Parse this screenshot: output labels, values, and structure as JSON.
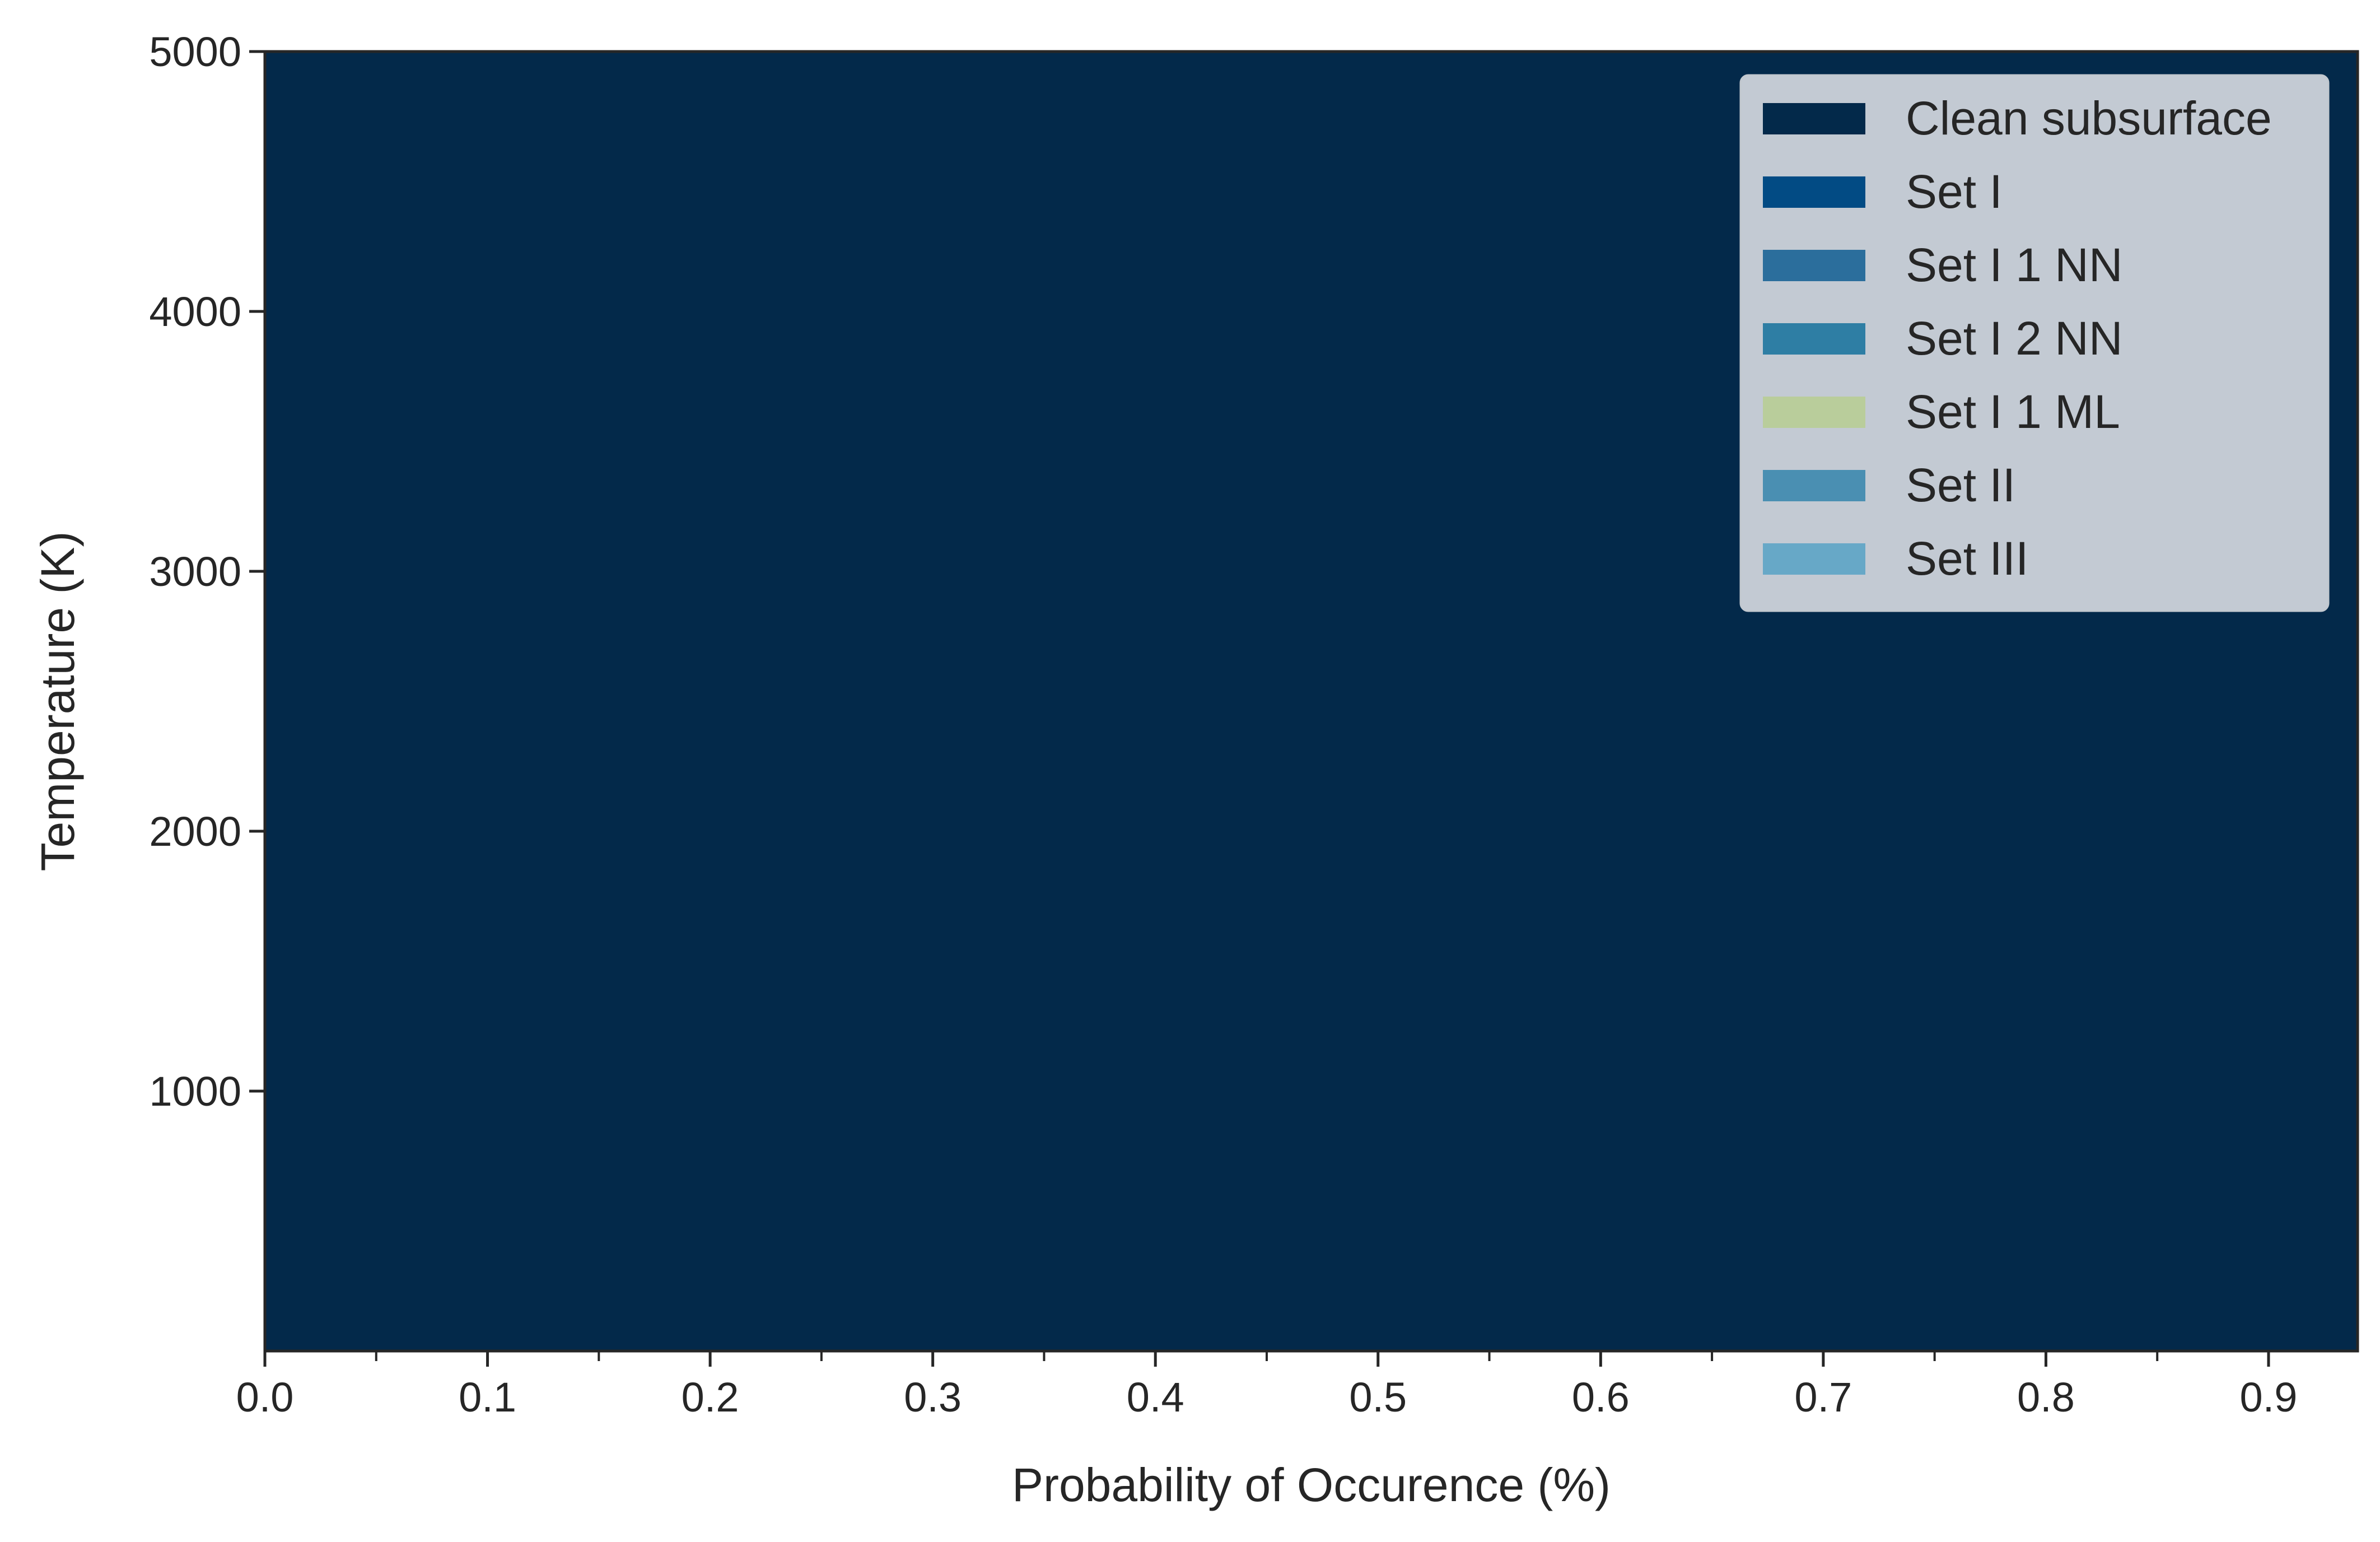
{
  "chart_data": {
    "type": "area",
    "orientation": "horizontal-stacked",
    "xlabel": "Probability of Occurence (%)",
    "ylabel": "Temperature (K)",
    "xlim": [
      0.0,
      0.94
    ],
    "ylim": [
      0,
      5000
    ],
    "x_ticks": [
      "0.0",
      "0.1",
      "0.2",
      "0.3",
      "0.4",
      "0.5",
      "0.6",
      "0.7",
      "0.8",
      "0.9"
    ],
    "x_tick_values": [
      0.0,
      0.1,
      0.2,
      0.3,
      0.4,
      0.5,
      0.6,
      0.7,
      0.8,
      0.9
    ],
    "x_minor_tick_values": [
      0.05,
      0.15,
      0.25,
      0.35,
      0.45,
      0.55,
      0.65,
      0.75,
      0.85
    ],
    "y_ticks": [
      "1000",
      "2000",
      "3000",
      "4000",
      "5000"
    ],
    "y_tick_values": [
      1000,
      2000,
      3000,
      4000,
      5000
    ],
    "grid": false,
    "legend_position": "top-right",
    "temperatures": [
      0,
      3200,
      3500,
      3800,
      4100,
      4200,
      4400,
      4700,
      4900,
      5000
    ],
    "series": [
      {
        "name": "Clean subsurface",
        "color": "#03294a",
        "values": [
          0.94,
          0.94,
          0.94,
          0.94,
          0.94,
          0.94,
          0.94,
          0.94,
          0.94,
          0.94
        ]
      },
      {
        "name": "Set I",
        "color": "#024b84",
        "values": [
          0,
          0,
          0,
          0,
          0,
          0,
          0,
          0,
          0,
          0
        ]
      },
      {
        "name": "Set I 1 NN",
        "color": "#2b6e9c",
        "values": [
          0,
          0.0003,
          0.0008,
          0.0012,
          0.0015,
          0.0016,
          0.0017,
          0.0018,
          0.0019,
          0.002
        ]
      },
      {
        "name": "Set I 2 NN",
        "color": "#2e7ea4",
        "values": [
          0,
          0.0002,
          0.0006,
          0.001,
          0.0014,
          0.0015,
          0.0016,
          0.0018,
          0.002,
          0.002
        ]
      },
      {
        "name": "Set I 1 ML",
        "color": "#b9cd9b",
        "values": [
          0,
          0,
          0,
          0,
          0,
          0,
          0,
          0,
          0,
          0
        ]
      },
      {
        "name": "Set II",
        "color": "#4a8fb2",
        "values": [
          0,
          0.0002,
          0.0006,
          0.001,
          0.0013,
          0.0014,
          0.0015,
          0.0016,
          0.0018,
          0.0018
        ]
      },
      {
        "name": "Set III",
        "color": "#67a8c7",
        "values": [
          0,
          0,
          0.0002,
          0.0004,
          0.0006,
          0.0007,
          0.0008,
          0.0009,
          0.001,
          0.001
        ]
      }
    ]
  }
}
